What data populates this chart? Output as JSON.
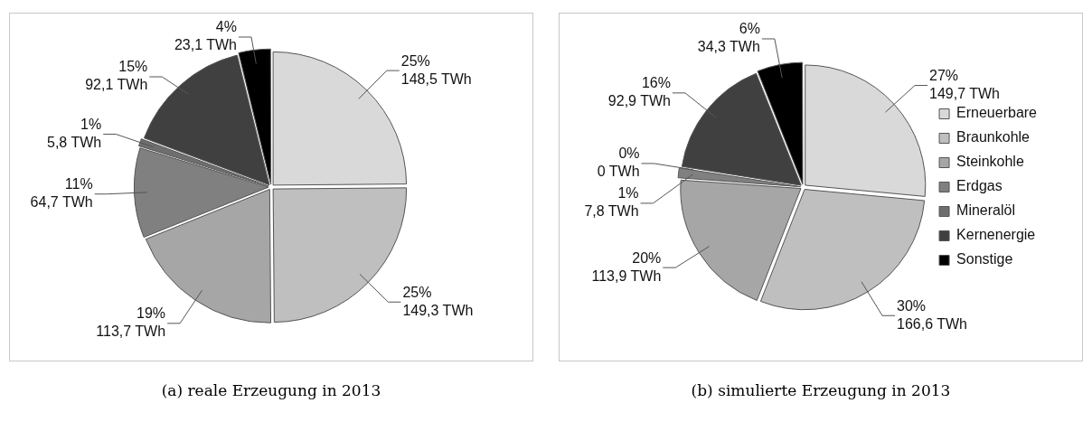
{
  "chart_data": [
    {
      "type": "pie",
      "title": "(a) reale Erzeugung in 2013",
      "categories": [
        null,
        null,
        null,
        null,
        null,
        null,
        null
      ],
      "values": [
        148.5,
        149.3,
        113.7,
        64.7,
        5.8,
        92.1,
        23.1
      ],
      "value_labels": [
        "25%\n148,5 TWh",
        "25%\n149,3 TWh",
        "19%\n113,7 TWh",
        "11%\n64,7 TWh",
        "1%\n5,8 TWh",
        "15%\n92,1 TWh",
        "4%\n23,1 TWh"
      ],
      "colors": [
        "#d9d9d9",
        "#bfbfbf",
        "#a6a6a6",
        "#808080",
        "#6e6e6e",
        "#404040",
        "#000000"
      ],
      "legend": false
    },
    {
      "type": "pie",
      "title": "(b) simulierte Erzeugung in 2013",
      "categories": [
        "Erneuerbare",
        "Braunkohle",
        "Steinkohle",
        "Erdgas",
        "Mineralöl",
        "Kernenergie",
        "Sonstige"
      ],
      "values": [
        149.7,
        166.6,
        113.9,
        7.8,
        0,
        92.9,
        34.3
      ],
      "value_labels": [
        "27%\n149,7 TWh",
        "30%\n166,6 TWh",
        "20%\n113,9 TWh",
        "1%\n7,8 TWh",
        "0%\n0 TWh",
        "16%\n92,9 TWh",
        "6%\n34,3 TWh"
      ],
      "colors": [
        "#d9d9d9",
        "#bfbfbf",
        "#a6a6a6",
        "#808080",
        "#6e6e6e",
        "#404040",
        "#000000"
      ],
      "legend": "right"
    }
  ]
}
